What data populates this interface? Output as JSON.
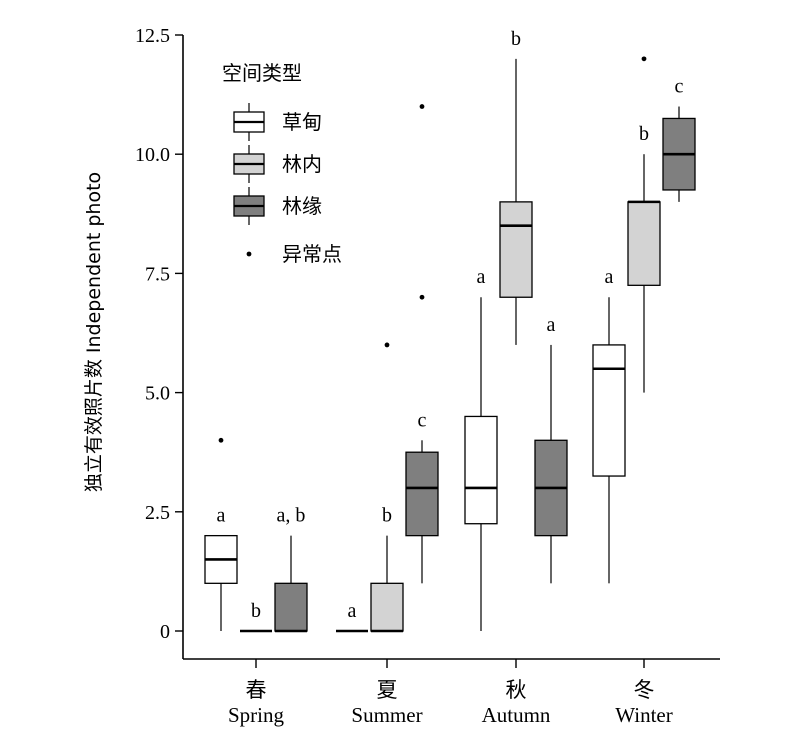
{
  "chart_data": {
    "type": "box",
    "ylabel": "独立有效照片数 Independent photo",
    "ylim": [
      0,
      12.5
    ],
    "yticks": [
      0,
      2.5,
      5.0,
      7.5,
      10.0,
      12.5
    ],
    "ytick_labels": [
      "0",
      "2.5",
      "5.0",
      "7.5",
      "10.0",
      "12.5"
    ],
    "categories": [
      {
        "zh": "春",
        "en": "Spring"
      },
      {
        "zh": "夏",
        "en": "Summer"
      },
      {
        "zh": "秋",
        "en": "Autumn"
      },
      {
        "zh": "冬",
        "en": "Winter"
      }
    ],
    "legend": {
      "title": "空间类型",
      "placement": "top-left",
      "outlier_label": "异常点"
    },
    "series": [
      {
        "name": "草甸",
        "color": "#ffffff",
        "boxes": [
          {
            "min": 0,
            "q1": 1,
            "median": 1.5,
            "q3": 2,
            "max": 2,
            "outliers": [
              4
            ],
            "letter": "a"
          },
          {
            "min": 0,
            "q1": 0,
            "median": 0,
            "q3": 0,
            "max": 0,
            "outliers": [],
            "letter": "a"
          },
          {
            "min": 0,
            "q1": 2.25,
            "median": 3,
            "q3": 4.5,
            "max": 7,
            "outliers": [],
            "letter": "a"
          },
          {
            "min": 1,
            "q1": 3.25,
            "median": 5.5,
            "q3": 6,
            "max": 7,
            "outliers": [],
            "letter": "a"
          }
        ]
      },
      {
        "name": "林内",
        "color": "#d3d3d3",
        "boxes": [
          {
            "min": 0,
            "q1": 0,
            "median": 0,
            "q3": 0,
            "max": 0,
            "outliers": [],
            "letter": "b"
          },
          {
            "min": 0,
            "q1": 0,
            "median": 0,
            "q3": 1,
            "max": 2,
            "outliers": [
              6
            ],
            "letter": "b"
          },
          {
            "min": 6,
            "q1": 7,
            "median": 8.5,
            "q3": 9,
            "max": 12,
            "outliers": [],
            "letter": "b"
          },
          {
            "min": 5,
            "q1": 7.25,
            "median": 9,
            "q3": 9,
            "max": 10,
            "outliers": [
              12
            ],
            "letter": "b"
          }
        ]
      },
      {
        "name": "林缘",
        "color": "#7f7f7f",
        "boxes": [
          {
            "min": 0,
            "q1": 0,
            "median": 0,
            "q3": 1,
            "max": 2,
            "outliers": [],
            "letter": "a, b"
          },
          {
            "min": 1,
            "q1": 2,
            "median": 3,
            "q3": 3.75,
            "max": 4,
            "outliers": [
              7,
              11
            ],
            "letter": "c"
          },
          {
            "min": 1,
            "q1": 2,
            "median": 3,
            "q3": 4,
            "max": 6,
            "outliers": [],
            "letter": "a"
          },
          {
            "min": 9,
            "q1": 9.25,
            "median": 10,
            "q3": 10.75,
            "max": 11,
            "outliers": [],
            "letter": "c"
          }
        ]
      }
    ]
  }
}
